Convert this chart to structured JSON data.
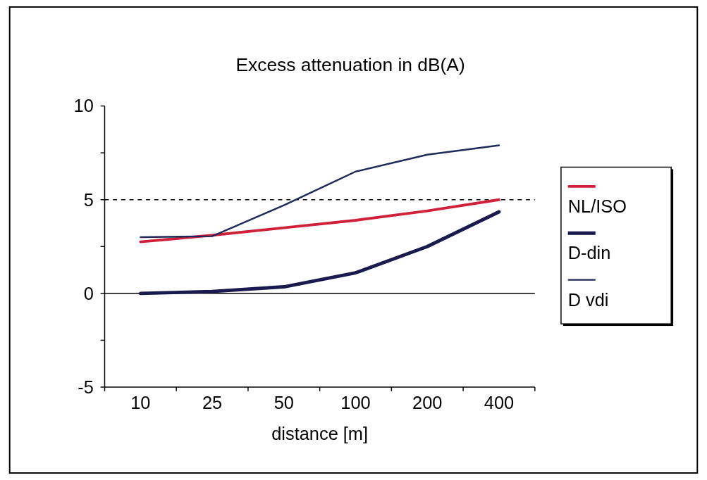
{
  "chart_data": {
    "type": "line",
    "title": "Excess attenuation in dB(A)",
    "xlabel": "distance [m]",
    "categories": [
      "10",
      "25",
      "50",
      "100",
      "200",
      "400"
    ],
    "series": [
      {
        "name": "NL/ISO",
        "color": "#d0213a",
        "values": [
          2.75,
          3.1,
          3.5,
          3.9,
          4.4,
          5.0
        ]
      },
      {
        "name": "D-din",
        "color": "#1a1a4e",
        "values": [
          0,
          0.1,
          0.35,
          1.1,
          2.5,
          4.35
        ]
      },
      {
        "name": "D vdi",
        "color": "#1f2a5a",
        "values": [
          3.0,
          3.05,
          4.7,
          6.5,
          7.4,
          7.9
        ]
      }
    ],
    "ylim": [
      -5,
      10
    ],
    "yticks": [
      -5,
      {
        "value": -2.5,
        "label": null
      },
      0,
      {
        "value": 2.5,
        "label": null
      },
      5,
      {
        "value": 7.5,
        "label": null
      },
      10
    ],
    "ref_lines": [
      {
        "axis": "y",
        "value": 5,
        "line_style": "dashed",
        "color": "#000000"
      },
      {
        "axis": "y",
        "value": 0,
        "line_style": "solid",
        "color": "#000000"
      }
    ],
    "legend": "right",
    "grid": false,
    "marker": "none",
    "line_style": "solid"
  }
}
